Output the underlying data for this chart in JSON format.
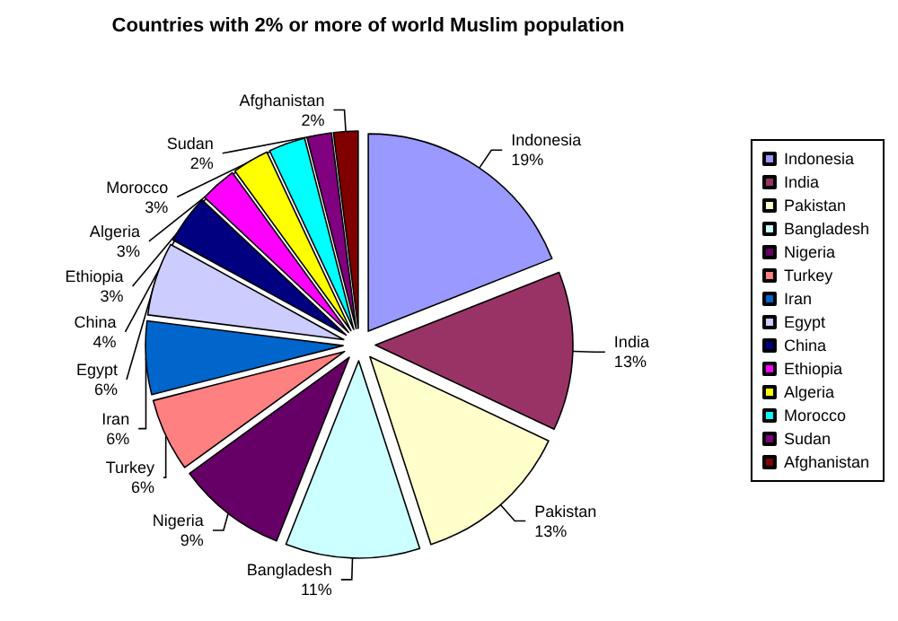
{
  "chart_data": {
    "type": "pie",
    "title": "Countries with 2% or more of world Muslim population",
    "categories": [
      "Indonesia",
      "India",
      "Pakistan",
      "Bangladesh",
      "Nigeria",
      "Turkey",
      "Iran",
      "Egypt",
      "China",
      "Ethiopia",
      "Algeria",
      "Morocco",
      "Sudan",
      "Afghanistan"
    ],
    "values": [
      19,
      13,
      13,
      11,
      9,
      6,
      6,
      6,
      4,
      3,
      3,
      3,
      2,
      2
    ],
    "value_labels": [
      "19%",
      "13%",
      "13%",
      "11%",
      "9%",
      "6%",
      "6%",
      "6%",
      "4%",
      "3%",
      "3%",
      "3%",
      "2%",
      "2%"
    ],
    "colors": [
      "#9999ff",
      "#993366",
      "#ffffcc",
      "#ccffff",
      "#660066",
      "#ff8080",
      "#0066cc",
      "#ccccff",
      "#000080",
      "#ff00ff",
      "#ffff00",
      "#00ffff",
      "#800080",
      "#800000"
    ],
    "legend": "right"
  }
}
